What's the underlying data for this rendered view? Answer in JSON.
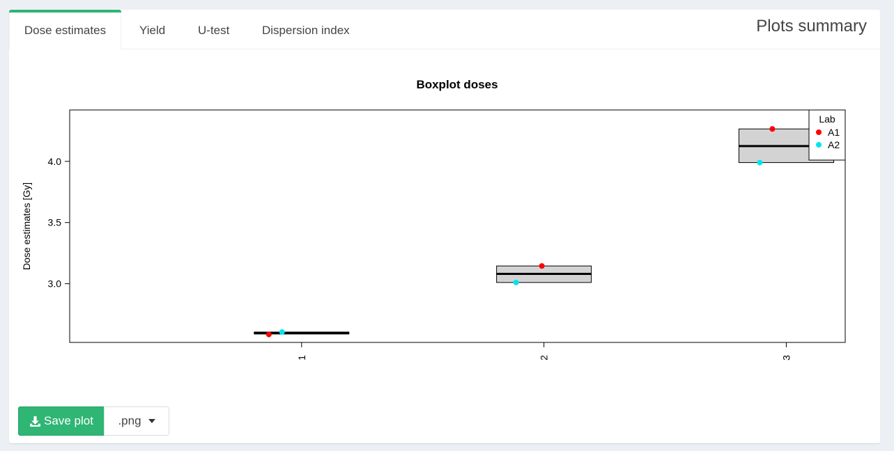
{
  "tabs": [
    {
      "label": "Dose estimates",
      "active": true
    },
    {
      "label": "Yield",
      "active": false
    },
    {
      "label": "U-test",
      "active": false
    },
    {
      "label": "Dispersion index",
      "active": false
    }
  ],
  "panel_title": "Plots summary",
  "accent_color": "#2fb574",
  "save_button": {
    "label": "Save plot",
    "icon": "download-icon"
  },
  "format_select": {
    "value": ".png",
    "icon": "caret-down-icon"
  },
  "chart_data": {
    "type": "boxplot",
    "title": "Boxplot doses",
    "xlabel": "",
    "ylabel": "Dose estimates [Gy]",
    "categories": [
      "1",
      "2",
      "3"
    ],
    "ylim": [
      2.52,
      4.42
    ],
    "y_ticks": [
      "3.0",
      "3.5",
      "4.0"
    ],
    "boxes": [
      {
        "category": "1",
        "min": 2.59,
        "q1": 2.59,
        "median": 2.595,
        "q3": 2.605,
        "max": 2.605
      },
      {
        "category": "2",
        "min": 3.01,
        "q1": 3.01,
        "median": 3.08,
        "q3": 3.145,
        "max": 3.145
      },
      {
        "category": "3",
        "min": 3.99,
        "q1": 3.99,
        "median": 4.125,
        "q3": 4.265,
        "max": 4.265
      }
    ],
    "series": [
      {
        "name": "A1",
        "color": "#ff0000",
        "points": [
          {
            "x": "1",
            "y": 2.585
          },
          {
            "x": "2",
            "y": 3.145
          },
          {
            "x": "3",
            "y": 4.265
          }
        ]
      },
      {
        "name": "A2",
        "color": "#00e5ee",
        "points": [
          {
            "x": "1",
            "y": 2.605
          },
          {
            "x": "2",
            "y": 3.01
          },
          {
            "x": "3",
            "y": 3.99
          }
        ]
      }
    ],
    "legend": {
      "title": "Lab",
      "placement": "top-right"
    },
    "box_fill": "#d3d3d3",
    "grid": false
  }
}
